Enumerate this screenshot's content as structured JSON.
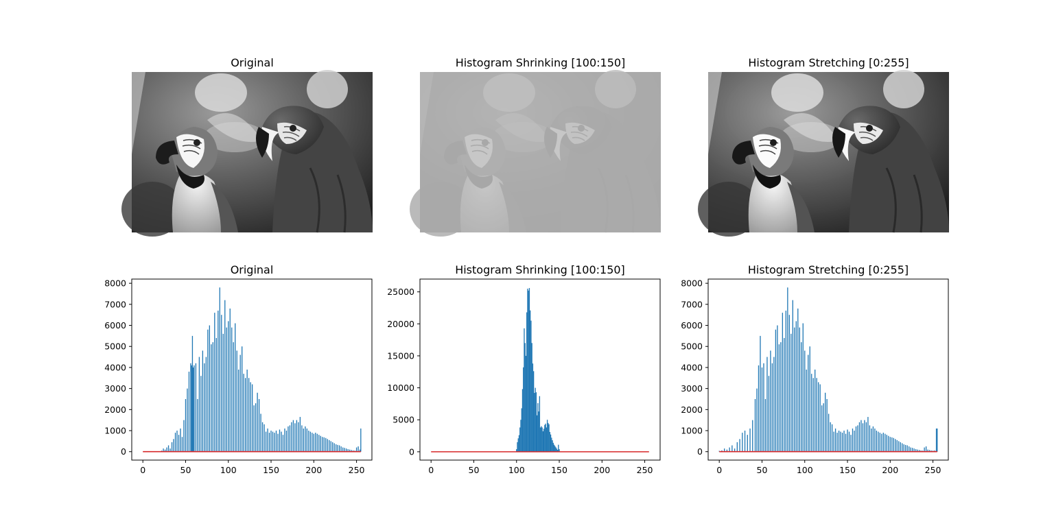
{
  "images": [
    {
      "title": "Original",
      "variant": "original",
      "colormap": "gray"
    },
    {
      "title": "Histogram Shrinking [100:150]",
      "variant": "shrunk",
      "colormap": "gray"
    },
    {
      "title": "Histogram Stretching [0:255]",
      "variant": "stretched",
      "colormap": "gray"
    }
  ],
  "colors": {
    "bars": "#1f77b4",
    "cdf_line": "#d62728",
    "axes": "#000000"
  },
  "chart_data": [
    {
      "type": "bar",
      "title": "Original",
      "xlabel": "",
      "ylabel": "",
      "xlim": [
        -13,
        268
      ],
      "ylim": [
        -400,
        8200
      ],
      "xticks": [
        0,
        50,
        100,
        150,
        200,
        250
      ],
      "yticks": [
        0,
        1000,
        2000,
        3000,
        4000,
        5000,
        6000,
        7000,
        8000
      ],
      "grid": false,
      "line": {
        "x": [
          0,
          255
        ],
        "y": [
          0,
          0
        ],
        "color": "#d62728"
      },
      "x": [
        22,
        24,
        26,
        28,
        30,
        32,
        34,
        36,
        38,
        40,
        42,
        44,
        46,
        48,
        50,
        52,
        54,
        56,
        57,
        58,
        59,
        60,
        62,
        64,
        66,
        68,
        70,
        72,
        74,
        76,
        78,
        80,
        82,
        84,
        86,
        88,
        90,
        92,
        94,
        96,
        98,
        100,
        102,
        104,
        106,
        108,
        110,
        112,
        114,
        116,
        118,
        120,
        122,
        124,
        126,
        128,
        130,
        132,
        134,
        136,
        138,
        140,
        142,
        144,
        146,
        148,
        150,
        152,
        154,
        156,
        158,
        160,
        162,
        164,
        166,
        168,
        170,
        172,
        174,
        176,
        178,
        180,
        182,
        184,
        186,
        188,
        190,
        192,
        194,
        196,
        198,
        200,
        202,
        204,
        206,
        208,
        210,
        212,
        214,
        216,
        218,
        220,
        222,
        224,
        226,
        228,
        230,
        232,
        234,
        236,
        238,
        240,
        242,
        244,
        246,
        248,
        250,
        252,
        254,
        255
      ],
      "y": [
        50,
        150,
        100,
        200,
        300,
        150,
        450,
        600,
        900,
        1000,
        800,
        1100,
        700,
        1500,
        2500,
        3000,
        3800,
        4200,
        4100,
        5500,
        4000,
        4100,
        4200,
        2500,
        4500,
        3600,
        4800,
        4200,
        4500,
        5800,
        6000,
        5100,
        5200,
        6600,
        5400,
        6700,
        7800,
        6500,
        5600,
        7200,
        5900,
        6200,
        6800,
        5900,
        5200,
        6100,
        4800,
        3900,
        4600,
        5000,
        3700,
        3500,
        3900,
        3500,
        3300,
        3200,
        2200,
        2300,
        2800,
        2500,
        1800,
        1400,
        1300,
        950,
        1100,
        900,
        1000,
        950,
        900,
        1000,
        850,
        1050,
        950,
        800,
        1100,
        1000,
        1200,
        1250,
        1400,
        1500,
        1350,
        1500,
        1400,
        1650,
        1250,
        1100,
        1200,
        1100,
        1000,
        950,
        900,
        850,
        900,
        850,
        800,
        750,
        700,
        680,
        650,
        600,
        550,
        500,
        450,
        400,
        350,
        320,
        300,
        250,
        200,
        180,
        150,
        120,
        100,
        80,
        60,
        50,
        200,
        250,
        100,
        1100
      ]
    },
    {
      "type": "bar",
      "title": "Histogram Shrinking [100:150]",
      "xlabel": "",
      "ylabel": "",
      "xlim": [
        -13,
        268
      ],
      "ylim": [
        -1300,
        27000
      ],
      "xticks": [
        0,
        50,
        100,
        150,
        200,
        250
      ],
      "yticks": [
        0,
        5000,
        10000,
        15000,
        20000,
        25000
      ],
      "grid": false,
      "line": {
        "x": [
          0,
          255
        ],
        "y": [
          0,
          0
        ],
        "color": "#d62728"
      },
      "x": [
        100,
        101,
        102,
        103,
        104,
        105,
        106,
        107,
        108,
        109,
        110,
        111,
        112,
        113,
        114,
        115,
        116,
        117,
        118,
        119,
        120,
        121,
        122,
        123,
        124,
        125,
        126,
        127,
        128,
        129,
        130,
        131,
        132,
        133,
        134,
        135,
        136,
        137,
        138,
        139,
        140,
        141,
        142,
        143,
        144,
        145,
        146,
        147,
        148,
        149,
        150
      ],
      "y": [
        400,
        1500,
        2100,
        2600,
        3800,
        5000,
        6800,
        9800,
        13200,
        19300,
        17000,
        15000,
        21800,
        25500,
        25200,
        25600,
        22100,
        20500,
        17000,
        13800,
        12600,
        9200,
        10000,
        9300,
        5700,
        7600,
        6300,
        8700,
        3800,
        4000,
        3800,
        3200,
        3600,
        4200,
        4400,
        3800,
        5000,
        4500,
        4300,
        3100,
        2700,
        2200,
        1800,
        1400,
        1100,
        900,
        700,
        500,
        300,
        1100,
        400
      ]
    },
    {
      "type": "bar",
      "title": "Histogram Stretching [0:255]",
      "xlabel": "",
      "ylabel": "",
      "xlim": [
        -13,
        268
      ],
      "ylim": [
        -400,
        8200
      ],
      "xticks": [
        0,
        50,
        100,
        150,
        200,
        250
      ],
      "yticks": [
        0,
        1000,
        2000,
        3000,
        4000,
        5000,
        6000,
        7000,
        8000
      ],
      "grid": false,
      "line": {
        "x": [
          0,
          255
        ],
        "y": [
          0,
          0
        ],
        "color": "#d62728"
      },
      "x": [
        0,
        3,
        6,
        9,
        12,
        15,
        18,
        21,
        24,
        27,
        30,
        33,
        36,
        39,
        42,
        44,
        46,
        48,
        50,
        52,
        54,
        56,
        58,
        60,
        62,
        64,
        66,
        68,
        70,
        72,
        74,
        76,
        78,
        80,
        82,
        84,
        86,
        88,
        90,
        92,
        94,
        96,
        98,
        100,
        102,
        104,
        106,
        108,
        110,
        112,
        114,
        116,
        118,
        120,
        122,
        124,
        126,
        128,
        130,
        132,
        134,
        136,
        138,
        140,
        142,
        144,
        146,
        148,
        150,
        152,
        154,
        156,
        158,
        160,
        162,
        164,
        166,
        168,
        170,
        172,
        174,
        176,
        178,
        180,
        182,
        184,
        186,
        188,
        190,
        192,
        194,
        196,
        198,
        200,
        202,
        204,
        206,
        208,
        210,
        212,
        214,
        216,
        218,
        220,
        222,
        224,
        226,
        228,
        230,
        232,
        234,
        236,
        238,
        240,
        242,
        244,
        246,
        248,
        250,
        252,
        254,
        255
      ],
      "y": [
        40,
        60,
        150,
        100,
        200,
        300,
        150,
        450,
        600,
        900,
        1000,
        800,
        1100,
        1500,
        2500,
        3000,
        4100,
        5500,
        4000,
        4200,
        2500,
        4500,
        3600,
        4800,
        4200,
        4500,
        5800,
        6000,
        5100,
        5200,
        6600,
        5400,
        6700,
        7800,
        6500,
        5600,
        7200,
        5900,
        6200,
        6800,
        5900,
        5200,
        6100,
        4800,
        3900,
        4600,
        5000,
        3700,
        3500,
        3900,
        3500,
        3300,
        3200,
        2200,
        2300,
        2800,
        2500,
        1800,
        1400,
        1300,
        950,
        1100,
        900,
        1000,
        950,
        900,
        1000,
        850,
        1050,
        950,
        800,
        1100,
        1000,
        1200,
        1250,
        1400,
        1500,
        1350,
        1500,
        1400,
        1650,
        1250,
        1100,
        1200,
        1100,
        1000,
        950,
        900,
        850,
        900,
        850,
        800,
        750,
        700,
        680,
        650,
        600,
        550,
        500,
        450,
        400,
        350,
        320,
        300,
        250,
        200,
        180,
        150,
        120,
        100,
        80,
        60,
        50,
        200,
        250,
        100,
        80,
        60,
        50,
        60,
        1100,
        1100
      ]
    }
  ]
}
